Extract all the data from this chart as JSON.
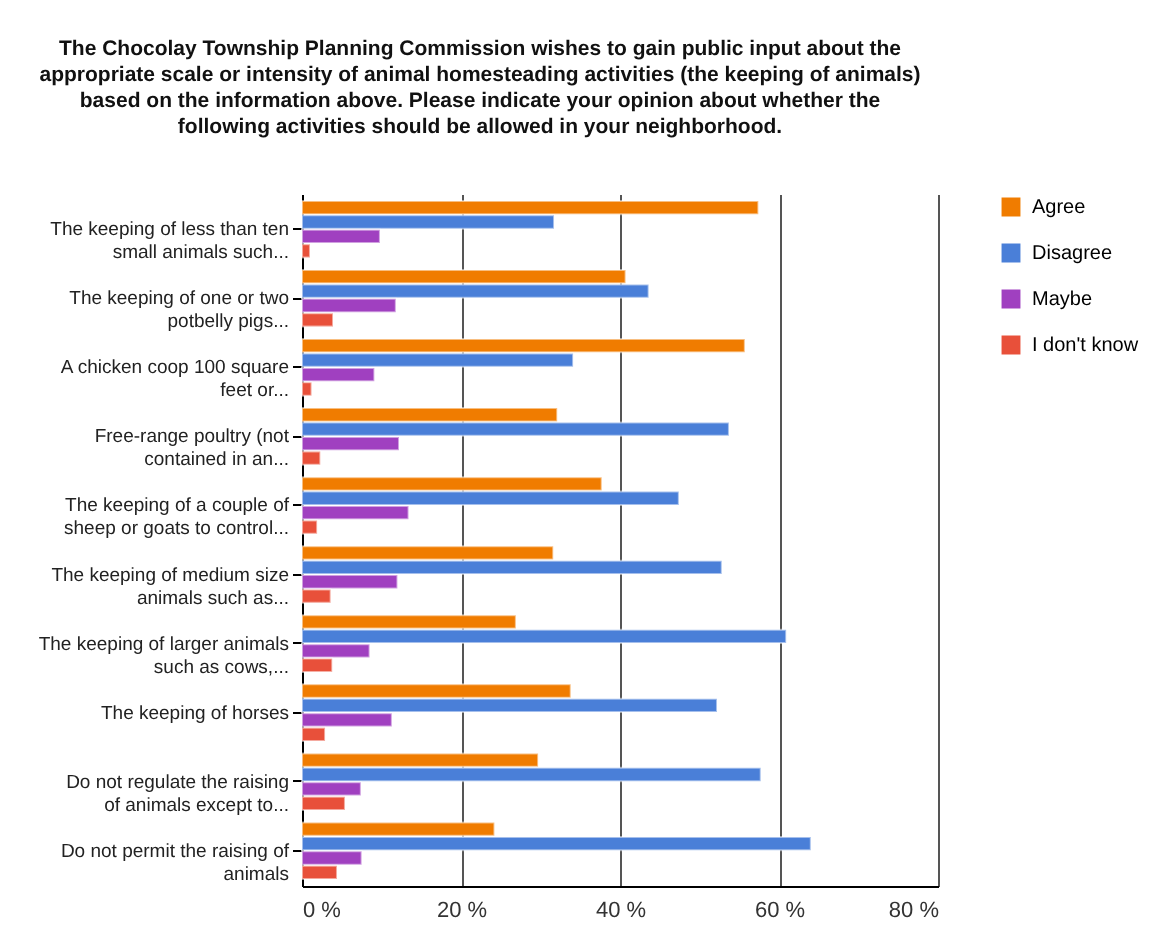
{
  "chart_data": {
    "type": "bar",
    "orientation": "horizontal",
    "title": "The Chocolay Township Planning Commission wishes to gain public input about the\nappropriate scale or intensity of animal homesteading activities (the keeping of animals)\nbased on the information above.  Please indicate your opinion  about whether the\nfollowing activities should be allowed in your neighborhood.",
    "categories": [
      "The keeping of less than ten small animals such...",
      "The keeping of one or two potbelly pigs...",
      "A chicken coop 100 square feet or...",
      "Free-range poultry (not contained in an...",
      "The keeping of a couple of sheep or goats to control...",
      "The keeping of medium size animals such as...",
      "The keeping of larger animals such as cows,...",
      "The keeping of horses",
      "Do not regulate the raising of animals except to...",
      "Do not permit the raising of animals"
    ],
    "series": [
      {
        "name": "Agree",
        "color": "#f07c00",
        "values": [
          57.4,
          40.7,
          55.7,
          32.1,
          37.7,
          31.6,
          26.9,
          33.8,
          29.7,
          24.2
        ]
      },
      {
        "name": "Disagree",
        "color": "#4a7fd8",
        "values": [
          31.7,
          43.6,
          34.1,
          53.7,
          47.4,
          52.8,
          60.9,
          52.2,
          57.7,
          64.0
        ]
      },
      {
        "name": "Maybe",
        "color": "#a040c0",
        "values": [
          9.8,
          11.8,
          9.1,
          12.2,
          13.4,
          12.0,
          8.5,
          11.3,
          7.4,
          7.5
        ]
      },
      {
        "name": "I don't know",
        "color": "#e8503a",
        "values": [
          1.0,
          3.9,
          1.2,
          2.3,
          1.9,
          3.6,
          3.8,
          2.9,
          5.4,
          4.4
        ]
      }
    ],
    "xlim": [
      0,
      80
    ],
    "xticks": [
      {
        "value": 0,
        "label": "0 %"
      },
      {
        "value": 20,
        "label": "20 %"
      },
      {
        "value": 40,
        "label": "40 %"
      },
      {
        "value": 60,
        "label": "60 %"
      },
      {
        "value": 80,
        "label": "80 %"
      }
    ],
    "grid": "x",
    "legend": "right"
  }
}
